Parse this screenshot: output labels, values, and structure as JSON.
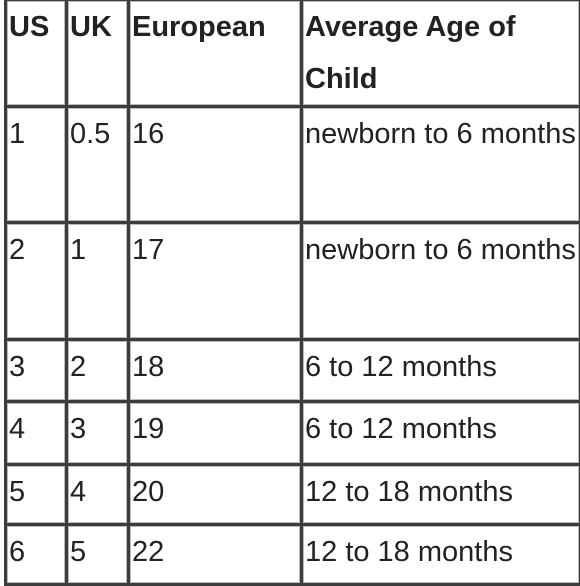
{
  "table": {
    "header": [
      "US",
      "UK",
      "European",
      "Average Age of Child"
    ],
    "rows": [
      [
        "1",
        "0.5",
        "16",
        "newborn to 6 months"
      ],
      [
        "2",
        "1",
        "17",
        "newborn to 6 months"
      ],
      [
        "3",
        "2",
        "18",
        "6 to 12 months"
      ],
      [
        "4",
        "3",
        "19",
        "6 to 12 months"
      ],
      [
        "5",
        "4",
        "20",
        "12 to 18 months"
      ],
      [
        "6",
        "5",
        "22",
        "12 to 18 months"
      ]
    ]
  }
}
